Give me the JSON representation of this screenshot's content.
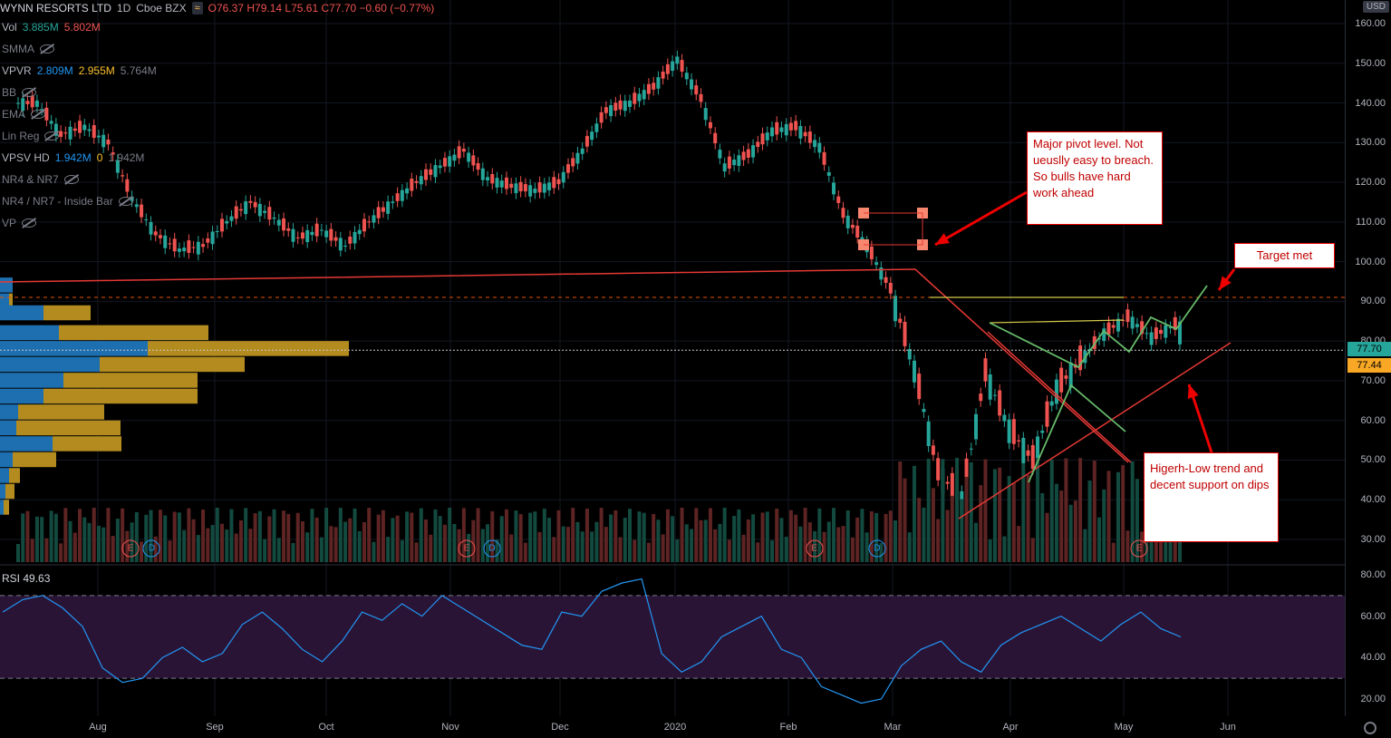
{
  "header": {
    "symbol": "WYNN RESORTS LTD",
    "interval": "1D",
    "exchange": "Cboe BZX",
    "open": "O76.37",
    "high": "H79.14",
    "low": "L75.61",
    "close": "C77.70",
    "change": "−0.60 (−0.77%)"
  },
  "indicators": {
    "vol": {
      "label": "Vol",
      "v1": "3.885M",
      "v2": "5.802M"
    },
    "smma": "SMMA",
    "vpvr": {
      "label": "VPVR",
      "v1": "2.809M",
      "v2": "2.955M",
      "v3": "5.764M"
    },
    "bb": "BB",
    "ema": "EMA",
    "linreg": "Lin Reg",
    "vpsv": {
      "label": "VPSV HD",
      "v1": "1.942M",
      "v2": "0",
      "v3": "1.942M"
    },
    "nr4a": "NR4 & NR7",
    "nr4b": "NR4 / NR7 - Inside Bar",
    "vp": "VP"
  },
  "currency": "USD",
  "rsi": {
    "label": "RSI",
    "value": "49.63"
  },
  "price_tags": {
    "last": "77.70",
    "other": "77.44"
  },
  "annotations": {
    "pivot": "Major pivot level. Not ueuslly easy to breach. So bulls have hard work ahead",
    "target": "Target met",
    "trend": "Higerh-Low trend and decent support on dips"
  },
  "events": [
    {
      "type": "E",
      "month_index": 0.28
    },
    {
      "type": "D",
      "month_index": 0.46
    },
    {
      "type": "E",
      "month_index": 3.15
    },
    {
      "type": "D",
      "month_index": 3.38
    },
    {
      "type": "E",
      "month_index": 6.25
    },
    {
      "type": "D",
      "month_index": 6.85
    },
    {
      "type": "E",
      "month_index": 9.15
    }
  ],
  "colors": {
    "up": "#26a69a",
    "down": "#ef5350",
    "vp_blue": "#1e6fb0",
    "vp_gold": "#b38b1f",
    "rsi_line": "#2196f3",
    "rsi_band": "#2a1436",
    "trend_red": "#e53935",
    "trend_green": "#66bb6a",
    "trend_yellow": "#d4c94a",
    "pivot_line": "#e65100"
  },
  "chart_data": {
    "type": "candlestick",
    "x_months": [
      "Aug",
      "Sep",
      "Oct",
      "Nov",
      "Dec",
      "2020",
      "Feb",
      "Mar",
      "Apr",
      "May",
      "Jun"
    ],
    "y_ticks": [
      30,
      40,
      50,
      60,
      70,
      80,
      90,
      100,
      110,
      120,
      130,
      140,
      150,
      160
    ],
    "ylim": [
      26,
      164
    ],
    "rsi_ticks": [
      20,
      40,
      60,
      80
    ],
    "rsi_levels": [
      70,
      30
    ],
    "close_series": [
      [
        "Jul",
        140
      ],
      [
        "Jul",
        132
      ],
      [
        "Jul",
        134
      ],
      [
        "Aug",
        130
      ],
      [
        "Aug",
        116
      ],
      [
        "Aug",
        107
      ],
      [
        "Aug",
        103
      ],
      [
        "Sep",
        104
      ],
      [
        "Sep",
        110
      ],
      [
        "Sep",
        115
      ],
      [
        "Sep",
        111
      ],
      [
        "Sep",
        106
      ],
      [
        "Oct",
        108
      ],
      [
        "Oct",
        104
      ],
      [
        "Oct",
        110
      ],
      [
        "Oct",
        115
      ],
      [
        "Nov",
        120
      ],
      [
        "Nov",
        124
      ],
      [
        "Nov",
        128
      ],
      [
        "Nov",
        121
      ],
      [
        "Dec",
        119
      ],
      [
        "Dec",
        118
      ],
      [
        "Dec",
        120
      ],
      [
        "Dec",
        128
      ],
      [
        "2020",
        138
      ],
      [
        "2020",
        140
      ],
      [
        "2020",
        144
      ],
      [
        "2020",
        151
      ],
      [
        "2020",
        141
      ],
      [
        "Feb",
        124
      ],
      [
        "Feb",
        127
      ],
      [
        "Feb",
        133
      ],
      [
        "Feb",
        134
      ],
      [
        "Feb",
        129
      ],
      [
        "Mar",
        112
      ],
      [
        "Mar",
        104
      ],
      [
        "Mar",
        93
      ],
      [
        "Mar",
        73
      ],
      [
        "Mar",
        47
      ],
      [
        "Mar",
        40
      ],
      [
        "Apr",
        72
      ],
      [
        "Apr",
        58
      ],
      [
        "Apr",
        50
      ],
      [
        "Apr",
        68
      ],
      [
        "Apr",
        75
      ],
      [
        "Apr",
        82
      ],
      [
        "May",
        86
      ],
      [
        "May",
        81
      ],
      [
        "May",
        84
      ],
      [
        "May",
        77.7
      ]
    ],
    "levels": [
      {
        "name": "pivot",
        "value": 104
      },
      {
        "name": "target",
        "value": 91
      }
    ]
  }
}
